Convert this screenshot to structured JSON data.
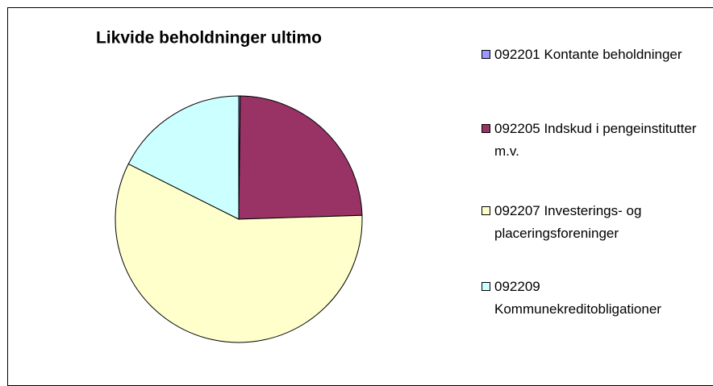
{
  "chart_data": {
    "type": "pie",
    "title": "Likvide beholdninger ultimo",
    "categories": [
      "092201 Kontante beholdninger",
      "092205 Indskud i pengeinstitutter m.v.",
      "092207 Investerings- og placeringsforeninger",
      "092209 Kommunekreditobligationer"
    ],
    "values": [
      0.2,
      24.3,
      57.9,
      17.6
    ],
    "colors": [
      "#9999ff",
      "#993366",
      "#ffffcc",
      "#ccffff"
    ]
  }
}
